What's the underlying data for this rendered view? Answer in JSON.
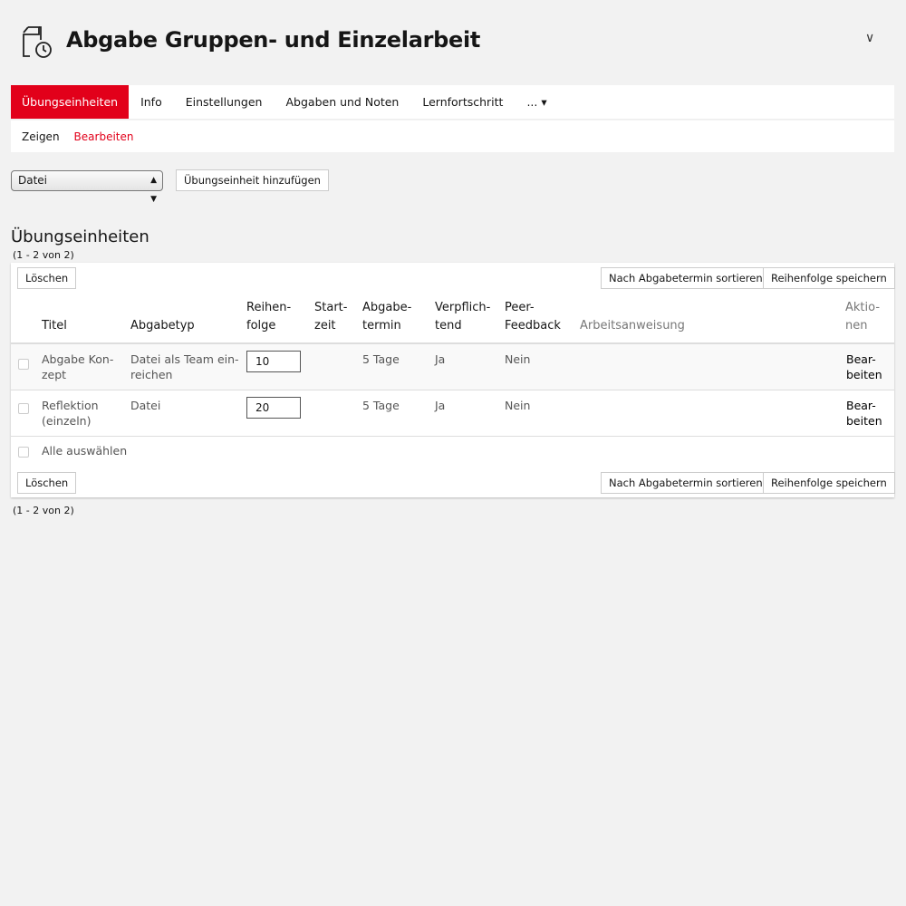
{
  "header": {
    "title": "Abgabe Gruppen- und Einzelarbeit",
    "icon": "file-clock-icon",
    "collapse_icon": "chevron-down-icon"
  },
  "tabs": [
    "Übungseinheiten",
    "Info",
    "Einstellungen",
    "Abgaben und Noten",
    "Lernfortschritt",
    "... ▾"
  ],
  "subtabs": [
    "Zeigen",
    "Bearbeiten"
  ],
  "toolbar": {
    "type_select": "Datei",
    "add_button": "Übungseinheit hinzufügen"
  },
  "section": {
    "title": "Übungseinheiten",
    "count": "(1 - 2 von 2)"
  },
  "table": {
    "delete_button": "Löschen",
    "sort_button": "Nach Abgabetermin sortieren",
    "save_order_button": "Reihenfolge speichern",
    "columns": [
      "Titel",
      "Abgabetyp",
      "Reihen-\nfolge",
      "Start-\nzeit",
      "Abgabe-\ntermin",
      "Verpflich-\ntend",
      "Peer-\nFeedback",
      "Arbeitsanweisung",
      "Aktio-\nnen"
    ],
    "rows": [
      {
        "title": "Abgabe Kon-\nzept",
        "type": "Datei als Team ein-\nreichen",
        "order": "10",
        "start": "",
        "deadline": "5 Tage",
        "mandatory": "Ja",
        "peer": "Nein",
        "instructions": "",
        "action": "Bear-\nbeiten"
      },
      {
        "title": "Reflektion\n(einzeln)",
        "type": "Datei",
        "order": "20",
        "start": "",
        "deadline": "5 Tage",
        "mandatory": "Ja",
        "peer": "Nein",
        "instructions": "",
        "action": "Bear-\nbeiten"
      }
    ],
    "select_all": "Alle auswählen"
  },
  "colors": {
    "accent": "#e2001a"
  }
}
